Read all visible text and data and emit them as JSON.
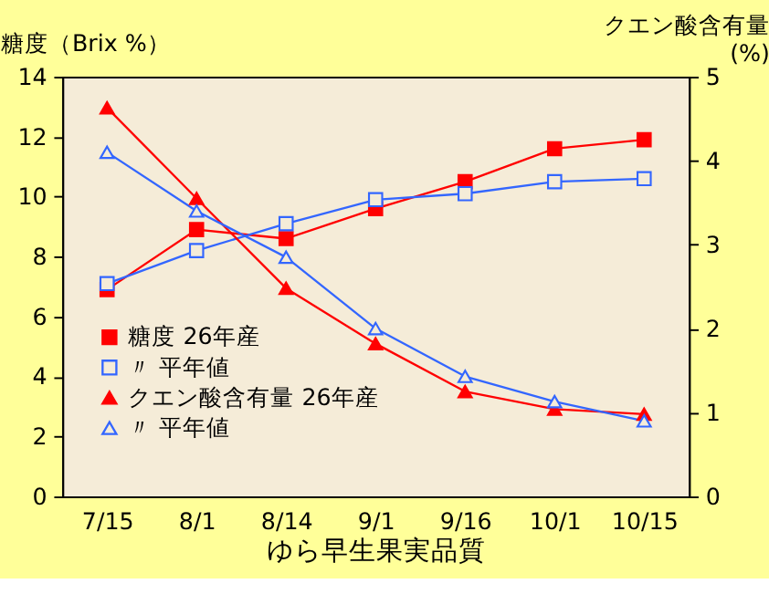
{
  "chart_data": {
    "type": "line",
    "xlabel": "ゆら早生果実品質",
    "ylabel": "糖度（Brix %）",
    "y2label": "クエン酸含有量\n(%)",
    "categories": [
      "7/15",
      "8/1",
      "8/14",
      "9/1",
      "9/16",
      "10/1",
      "10/15"
    ],
    "ylim": [
      0,
      14
    ],
    "yticks": [
      0,
      2,
      4,
      6,
      8,
      10,
      12,
      14
    ],
    "y2lim": [
      0,
      5
    ],
    "y2ticks": [
      0,
      1,
      2,
      3,
      4,
      5
    ],
    "grid": false,
    "legend": "left",
    "line_style": "solid",
    "series": [
      {
        "name": "糖度 26年産",
        "color": "#ff0000",
        "marker": "square",
        "values": [
          6.9,
          8.9,
          8.6,
          9.6,
          10.5,
          11.6,
          11.9
        ]
      },
      {
        "name": "〃 平年値",
        "color": "#3366ff",
        "marker": "square-open",
        "values": [
          7.1,
          8.2,
          9.1,
          9.9,
          10.1,
          10.5,
          10.6
        ]
      },
      {
        "name": "クエン酸含有量 26年産",
        "color": "#ff0000",
        "marker": "triangle",
        "axis": "y2",
        "values": [
          4.63,
          3.55,
          2.48,
          1.82,
          1.25,
          1.04,
          0.98
        ]
      },
      {
        "name": "〃      平年値",
        "color": "#3366ff",
        "marker": "triangle-open",
        "axis": "y2",
        "values": [
          4.1,
          3.4,
          2.85,
          2.0,
          1.43,
          1.13,
          0.9
        ]
      }
    ]
  }
}
